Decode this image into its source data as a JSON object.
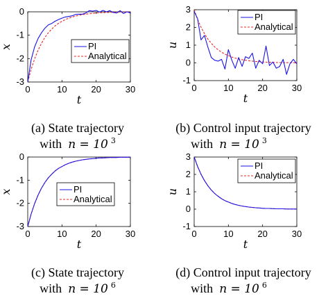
{
  "colors": {
    "pi": "#1a12e8",
    "analytical": "#e8262a",
    "axis": "#000000"
  },
  "chart_data": [
    {
      "type": "line",
      "xlabel": "t",
      "ylabel": "x",
      "xlim": [
        0,
        30
      ],
      "ylim": [
        -3,
        0
      ],
      "xticks": [
        "0",
        "10",
        "20",
        "30"
      ],
      "yticks": [
        "-3",
        "-2",
        "-1",
        "0"
      ],
      "legend_position": "center-right",
      "series": [
        {
          "name": "PI",
          "style": "solid",
          "x": [
            0,
            1,
            2,
            3,
            4,
            5,
            6,
            7,
            8,
            9,
            10,
            11,
            12,
            13,
            14,
            15,
            16,
            17,
            18,
            19,
            20,
            21,
            22,
            23,
            24,
            25,
            26,
            27,
            28,
            29,
            30
          ],
          "y": [
            -3,
            -2.05,
            -1.5,
            -1.15,
            -0.9,
            -0.7,
            -0.56,
            -0.5,
            -0.4,
            -0.33,
            -0.27,
            -0.22,
            -0.2,
            -0.17,
            -0.11,
            -0.1,
            -0.1,
            -0.05,
            0.05,
            0.03,
            0.06,
            -0.01,
            0.06,
            0,
            0.05,
            -0.03,
            -0.05,
            0.05,
            -0.07,
            0,
            -0.05
          ]
        },
        {
          "name": "Analytical",
          "style": "dashed",
          "x": [
            0,
            1,
            2,
            3,
            4,
            5,
            6,
            7,
            8,
            9,
            10,
            11,
            12,
            13,
            14,
            15,
            16,
            17,
            18,
            19,
            20,
            21,
            22,
            23,
            24,
            25,
            26,
            27,
            28,
            29,
            30
          ],
          "y": [
            -3,
            -2.46,
            -2.01,
            -1.65,
            -1.35,
            -1.1,
            -0.9,
            -0.74,
            -0.6,
            -0.49,
            -0.41,
            -0.33,
            -0.27,
            -0.22,
            -0.18,
            -0.15,
            -0.12,
            -0.1,
            -0.08,
            -0.07,
            -0.05,
            -0.04,
            -0.04,
            -0.03,
            -0.02,
            -0.02,
            -0.02,
            -0.01,
            -0.01,
            -0.01,
            -0.01
          ]
        }
      ]
    },
    {
      "type": "line",
      "xlabel": "t",
      "ylabel": "u",
      "xlim": [
        0,
        30
      ],
      "ylim": [
        -1,
        3
      ],
      "xticks": [
        "0",
        "10",
        "20",
        "30"
      ],
      "yticks": [
        "-1",
        "0",
        "1",
        "2",
        "3"
      ],
      "legend_position": "top-right",
      "series": [
        {
          "name": "PI",
          "style": "solid",
          "x": [
            0,
            1,
            2,
            3,
            4,
            5,
            6,
            7,
            8,
            9,
            10,
            11,
            12,
            13,
            14,
            15,
            16,
            17,
            18,
            19,
            20,
            21,
            22,
            23,
            24,
            25,
            26,
            27,
            28,
            29,
            30
          ],
          "y": [
            2.9,
            2.5,
            1.3,
            1.55,
            0.9,
            0.3,
            0.15,
            0.1,
            0.2,
            -0.35,
            0.75,
            0.15,
            -0.3,
            0.3,
            -0.2,
            0.35,
            0.25,
            0.55,
            -0.3,
            0.15,
            -0.05,
            0.95,
            -0.15,
            0.05,
            -0.3,
            -0.2,
            0.2,
            -0.65,
            -0.05,
            0.2,
            -0.05
          ]
        },
        {
          "name": "Analytical",
          "style": "dashed",
          "x": [
            0,
            1,
            2,
            3,
            4,
            5,
            6,
            7,
            8,
            9,
            10,
            11,
            12,
            13,
            14,
            15,
            16,
            17,
            18,
            19,
            20,
            21,
            22,
            23,
            24,
            25,
            26,
            27,
            28,
            29,
            30
          ],
          "y": [
            3,
            2.46,
            2.01,
            1.65,
            1.35,
            1.1,
            0.9,
            0.74,
            0.6,
            0.49,
            0.41,
            0.33,
            0.27,
            0.22,
            0.18,
            0.15,
            0.12,
            0.1,
            0.08,
            0.07,
            0.05,
            0.04,
            0.04,
            0.03,
            0.02,
            0.02,
            0.02,
            0.01,
            0.01,
            0.01,
            0.01
          ]
        }
      ]
    },
    {
      "type": "line",
      "xlabel": "t",
      "ylabel": "x",
      "xlim": [
        0,
        30
      ],
      "ylim": [
        -3,
        0
      ],
      "xticks": [
        "0",
        "10",
        "20",
        "30"
      ],
      "yticks": [
        "-3",
        "-2",
        "-1",
        "0"
      ],
      "legend_position": "center-right",
      "series": [
        {
          "name": "PI",
          "style": "solid",
          "x": [
            0,
            1,
            2,
            3,
            4,
            5,
            6,
            7,
            8,
            9,
            10,
            11,
            12,
            13,
            14,
            15,
            16,
            17,
            18,
            19,
            20,
            21,
            22,
            23,
            24,
            25,
            26,
            27,
            28,
            29,
            30
          ],
          "y": [
            -3,
            -2.46,
            -2.01,
            -1.65,
            -1.35,
            -1.1,
            -0.9,
            -0.74,
            -0.6,
            -0.49,
            -0.41,
            -0.33,
            -0.27,
            -0.22,
            -0.18,
            -0.15,
            -0.12,
            -0.1,
            -0.08,
            -0.07,
            -0.05,
            -0.04,
            -0.04,
            -0.03,
            -0.02,
            -0.02,
            -0.02,
            -0.01,
            -0.01,
            -0.01,
            -0.01
          ]
        },
        {
          "name": "Analytical",
          "style": "dashed",
          "x": [
            0,
            1,
            2,
            3,
            4,
            5,
            6,
            7,
            8,
            9,
            10,
            11,
            12,
            13,
            14,
            15,
            16,
            17,
            18,
            19,
            20,
            21,
            22,
            23,
            24,
            25,
            26,
            27,
            28,
            29,
            30
          ],
          "y": [
            -3,
            -2.46,
            -2.01,
            -1.65,
            -1.35,
            -1.1,
            -0.9,
            -0.74,
            -0.6,
            -0.49,
            -0.41,
            -0.33,
            -0.27,
            -0.22,
            -0.18,
            -0.15,
            -0.12,
            -0.1,
            -0.08,
            -0.07,
            -0.05,
            -0.04,
            -0.04,
            -0.03,
            -0.02,
            -0.02,
            -0.02,
            -0.01,
            -0.01,
            -0.01,
            -0.01
          ]
        }
      ]
    },
    {
      "type": "line",
      "xlabel": "t",
      "ylabel": "u",
      "xlim": [
        0,
        30
      ],
      "ylim": [
        -1,
        3
      ],
      "xticks": [
        "0",
        "10",
        "20",
        "30"
      ],
      "yticks": [
        "-1",
        "0",
        "1",
        "2",
        "3"
      ],
      "legend_position": "top-right",
      "series": [
        {
          "name": "PI",
          "style": "solid",
          "x": [
            0,
            1,
            2,
            3,
            4,
            5,
            6,
            7,
            8,
            9,
            10,
            11,
            12,
            13,
            14,
            15,
            16,
            17,
            18,
            19,
            20,
            21,
            22,
            23,
            24,
            25,
            26,
            27,
            28,
            29,
            30
          ],
          "y": [
            3,
            2.46,
            2.01,
            1.65,
            1.35,
            1.1,
            0.9,
            0.74,
            0.6,
            0.49,
            0.41,
            0.33,
            0.27,
            0.22,
            0.18,
            0.15,
            0.12,
            0.1,
            0.08,
            0.07,
            0.05,
            0.04,
            0.04,
            0.03,
            0.02,
            0.02,
            0.02,
            0.01,
            0.01,
            0.01,
            0.01
          ]
        },
        {
          "name": "Analytical",
          "style": "dashed",
          "x": [
            0,
            1,
            2,
            3,
            4,
            5,
            6,
            7,
            8,
            9,
            10,
            11,
            12,
            13,
            14,
            15,
            16,
            17,
            18,
            19,
            20,
            21,
            22,
            23,
            24,
            25,
            26,
            27,
            28,
            29,
            30
          ],
          "y": [
            3,
            2.46,
            2.01,
            1.65,
            1.35,
            1.1,
            0.9,
            0.74,
            0.6,
            0.49,
            0.41,
            0.33,
            0.27,
            0.22,
            0.18,
            0.15,
            0.12,
            0.1,
            0.08,
            0.07,
            0.05,
            0.04,
            0.04,
            0.03,
            0.02,
            0.02,
            0.02,
            0.01,
            0.01,
            0.01,
            0.01
          ]
        }
      ]
    }
  ],
  "captions": [
    {
      "line1": "(a) State trajectory",
      "with": "with",
      "math": "n = 10",
      "exp": "3"
    },
    {
      "line1": "(b) Control input trajectory",
      "with": "with",
      "math": "n = 10",
      "exp": "3"
    },
    {
      "line1": "(c) State trajectory",
      "with": "with",
      "math": "n = 10",
      "exp": "6"
    },
    {
      "line1": "(d) Control input trajectory",
      "with": "with",
      "math": "n = 10",
      "exp": "6"
    }
  ]
}
